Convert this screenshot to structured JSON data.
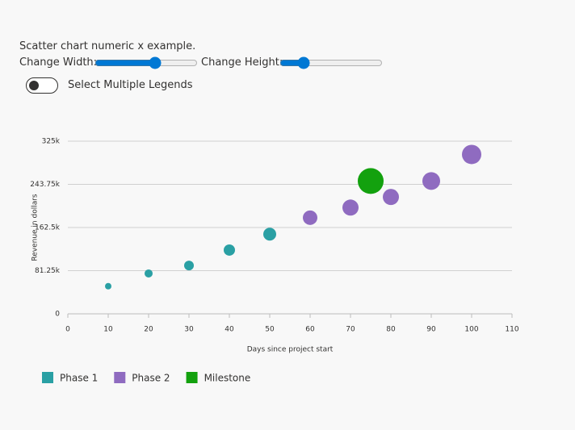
{
  "header": {
    "title": "Scatter chart numeric x example.",
    "width_label": "Change Width:",
    "height_label": "Change Height:",
    "toggle_label": "Select Multiple Legends"
  },
  "chart_data": {
    "type": "scatter",
    "x_label": "Days since project start",
    "y_label": "Revenue in dollars",
    "xlim": [
      0,
      110
    ],
    "xticks": [
      0,
      10,
      20,
      30,
      40,
      50,
      60,
      70,
      80,
      90,
      100,
      110
    ],
    "ylim": [
      0,
      325000
    ],
    "yticks": [
      0,
      {
        "value": 81250,
        "label": "81.25k"
      },
      {
        "value": 162500,
        "label": "162.5k"
      },
      {
        "value": 243750,
        "label": "243.75k"
      },
      {
        "value": 325000,
        "label": "325k"
      }
    ],
    "grid": true,
    "series": [
      {
        "name": "Phase 1",
        "color": "#2aa0a4",
        "x": [
          10,
          20,
          30,
          40,
          50
        ],
        "values": [
          52000,
          76000,
          91000,
          120000,
          150000
        ],
        "sizes": [
          4,
          5,
          6,
          7,
          8
        ]
      },
      {
        "name": "Phase 2",
        "color": "#8f6bc0",
        "x": [
          60,
          70,
          80,
          90,
          100
        ],
        "values": [
          181000,
          200000,
          220000,
          250000,
          300000
        ],
        "sizes": [
          9,
          10,
          10,
          11,
          12
        ]
      },
      {
        "name": "Milestone",
        "color": "#13a10e",
        "x": [
          75
        ],
        "values": [
          250000
        ],
        "sizes": [
          16
        ]
      }
    ]
  }
}
